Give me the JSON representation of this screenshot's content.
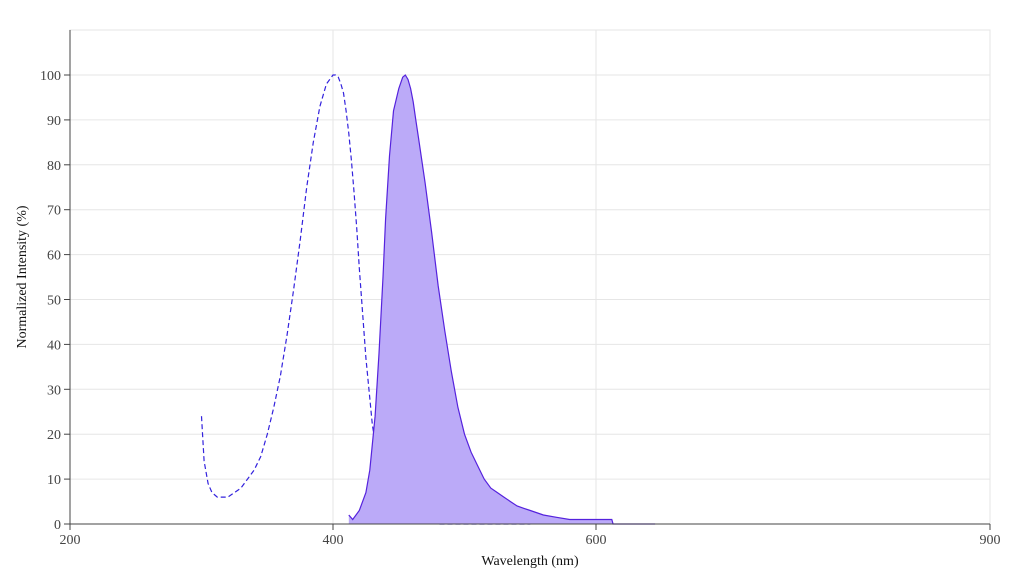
{
  "chart_data": {
    "type": "area",
    "xlabel": "Wavelength (nm)",
    "ylabel": "Normalized Intensity (%)",
    "xlim": [
      200,
      900
    ],
    "ylim": [
      0,
      110
    ],
    "x_ticks": [
      200,
      400,
      600,
      900
    ],
    "y_ticks": [
      0,
      10,
      20,
      30,
      40,
      50,
      60,
      70,
      80,
      90,
      100
    ],
    "grid": true,
    "legend": "none",
    "series": [
      {
        "style": "dashed-line",
        "color": "#3322dd",
        "x": [
          300,
          302,
          305,
          308,
          312,
          315,
          320,
          325,
          330,
          335,
          340,
          345,
          350,
          355,
          360,
          365,
          370,
          375,
          380,
          385,
          390,
          395,
          400,
          402,
          404,
          406,
          408,
          410,
          412,
          414,
          416,
          418,
          420,
          425,
          430,
          435,
          440,
          445,
          450,
          455,
          460,
          470,
          480,
          500,
          530,
          550
        ],
        "y": [
          24,
          14,
          9,
          7,
          6,
          6,
          6,
          7,
          8,
          10,
          12,
          15,
          20,
          26,
          33,
          42,
          52,
          63,
          75,
          85,
          93,
          98,
          100,
          100,
          99.5,
          98,
          96,
          92,
          87,
          81,
          74,
          66,
          57,
          37,
          22,
          13,
          7,
          4,
          2,
          1,
          0.5,
          0.2,
          0,
          0,
          0,
          0
        ]
      },
      {
        "style": "filled-area",
        "color": "#5522dd",
        "fill": "#bbaaf8",
        "x": [
          412,
          415,
          420,
          425,
          428,
          432,
          435,
          438,
          440,
          443,
          446,
          450,
          453,
          455,
          457,
          459,
          461,
          463,
          465,
          470,
          475,
          480,
          485,
          490,
          495,
          500,
          505,
          510,
          515,
          520,
          525,
          530,
          535,
          540,
          545,
          550,
          560,
          570,
          580,
          590,
          600,
          612,
          613,
          620,
          630,
          645
        ],
        "y": [
          2,
          1,
          3,
          7,
          12,
          24,
          38,
          55,
          68,
          82,
          92,
          97,
          99.5,
          100,
          99,
          97,
          94,
          90,
          86,
          76,
          65,
          53,
          43,
          34,
          26,
          20,
          16,
          13,
          10,
          8,
          7,
          6,
          5,
          4,
          3.5,
          3,
          2,
          1.5,
          1,
          1,
          1,
          1,
          0,
          0,
          0,
          0
        ]
      }
    ]
  }
}
